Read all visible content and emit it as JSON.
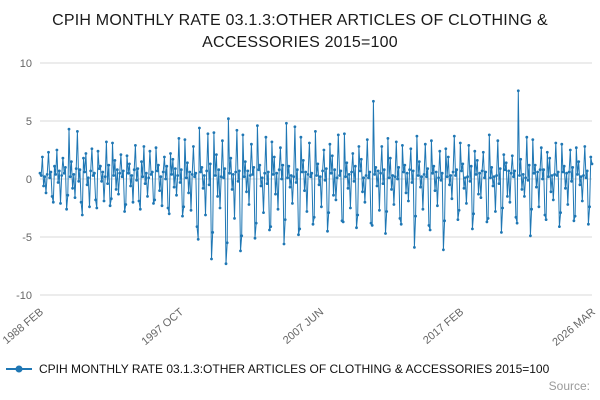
{
  "page_title": "CPIH MONTHLY RATE 03.1.3:OTHER ARTICLES OF CLOTHING & ACCESSORIES 2015=100",
  "legend": {
    "series_label": "CPIH MONTHLY RATE 03.1.3:OTHER ARTICLES OF CLOTHING & ACCESSORIES 2015=100"
  },
  "source": {
    "label": "Source:"
  },
  "colors": {
    "series": "#1f77b4",
    "grid": "#d9d9d9",
    "tick_text": "#666666",
    "title_text": "#1a1a1a",
    "source_text": "#9a9a9a"
  },
  "chart_data": {
    "type": "line",
    "title": "CPIH MONTHLY RATE 03.1.3:OTHER ARTICLES OF CLOTHING & ACCESSORIES 2015=100",
    "xlabel": "",
    "ylabel": "",
    "x_start": "1988 FEB",
    "x_end": "2026 MAR",
    "x_frequency": "monthly",
    "x_tick_labels": [
      "1988 FEB",
      "1997 OCT",
      "2007 JUN",
      "2017 FEB",
      "2026 MAR"
    ],
    "x_tick_indices": [
      0,
      116,
      232,
      348,
      457
    ],
    "y_ticks": [
      10,
      5,
      0,
      -5,
      -10
    ],
    "ylim": [
      -10,
      10
    ],
    "grid": "horizontal",
    "legend_position": "bottom-left",
    "marker": "circle",
    "values": [
      0.5,
      0.3,
      1.9,
      -0.6,
      0.2,
      -1.2,
      0.4,
      2.3,
      0.1,
      0.6,
      -1.5,
      -2.0,
      1.1,
      0.4,
      2.5,
      -0.3,
      0.7,
      -2.1,
      0.3,
      1.8,
      0.5,
      1.0,
      -2.6,
      -1.4,
      4.3,
      0.2,
      1.5,
      -0.8,
      0.4,
      -1.6,
      0.9,
      4.1,
      -0.2,
      0.8,
      -2.0,
      -3.1,
      1.8,
      0.6,
      2.2,
      -0.5,
      0.1,
      -2.4,
      0.7,
      2.6,
      0.3,
      0.5,
      -1.8,
      -2.5,
      2.4,
      0.9,
      1.1,
      -0.2,
      0.6,
      -1.9,
      0.2,
      3.2,
      -0.4,
      1.2,
      -2.3,
      -1.7,
      3.1,
      0.3,
      1.6,
      -0.9,
      0.8,
      -1.3,
      0.5,
      2.1,
      0.2,
      0.7,
      -2.8,
      -2.2,
      2.0,
      0.5,
      1.3,
      -0.6,
      0.3,
      -2.0,
      0.8,
      2.9,
      -0.1,
      0.9,
      -1.9,
      -2.6,
      1.5,
      0.2,
      2.8,
      -0.4,
      0.5,
      -1.5,
      0.1,
      2.4,
      0.4,
      0.6,
      -2.1,
      -1.8,
      2.7,
      0.7,
      1.2,
      -1.0,
      0.2,
      -2.3,
      0.6,
      1.9,
      0.0,
      1.1,
      -2.5,
      -3.0,
      2.2,
      0.4,
      1.7,
      -0.7,
      0.9,
      -1.4,
      0.3,
      3.5,
      -0.3,
      0.8,
      -3.2,
      -2.4,
      3.4,
      0.1,
      1.4,
      -1.2,
      0.6,
      -2.7,
      0.4,
      2.8,
      0.2,
      0.5,
      -4.1,
      -5.2,
      4.4,
      0.6,
      1.0,
      -0.8,
      0.3,
      -3.1,
      0.7,
      3.9,
      -0.5,
      1.3,
      -6.9,
      -4.6,
      4.0,
      0.3,
      2.1,
      -1.5,
      0.8,
      -2.5,
      0.2,
      3.3,
      0.1,
      0.9,
      -7.3,
      -5.5,
      5.2,
      0.5,
      1.8,
      -0.9,
      0.4,
      -3.4,
      0.6,
      4.2,
      -0.2,
      0.7,
      -6.2,
      -4.9,
      3.8,
      0.2,
      1.5,
      -1.1,
      0.7,
      -2.2,
      0.3,
      3.0,
      0.4,
      1.0,
      -5.1,
      -3.8,
      4.6,
      0.8,
      1.2,
      -0.6,
      0.1,
      -2.9,
      0.5,
      3.6,
      -0.4,
      0.6,
      -4.4,
      -4.1,
      3.2,
      0.4,
      1.9,
      -1.3,
      0.5,
      -2.6,
      0.8,
      2.7,
      0.0,
      1.2,
      -5.6,
      -3.5,
      4.8,
      0.1,
      1.1,
      -0.7,
      0.3,
      -2.1,
      0.2,
      4.5,
      -0.3,
      0.8,
      -4.8,
      -4.3,
      3.6,
      0.6,
      1.6,
      -1.0,
      0.6,
      -2.8,
      0.4,
      3.1,
      0.2,
      0.5,
      -3.9,
      -3.3,
      4.1,
      0.3,
      1.3,
      -0.5,
      0.2,
      -2.4,
      0.7,
      2.5,
      -0.1,
      0.9,
      -4.5,
      -2.9,
      3.0,
      0.5,
      2.0,
      -1.4,
      0.8,
      -1.8,
      0.1,
      3.8,
      0.3,
      0.7,
      -3.6,
      -3.7,
      3.9,
      0.2,
      1.4,
      -0.8,
      0.4,
      -2.5,
      0.6,
      2.2,
      -0.2,
      1.1,
      -4.2,
      -3.1,
      2.8,
      0.7,
      1.7,
      -1.1,
      0.1,
      -2.0,
      0.3,
      3.4,
      0.1,
      0.6,
      -3.8,
      -4.0,
      6.7,
      0.4,
      1.0,
      -0.6,
      0.7,
      -2.7,
      0.5,
      2.8,
      -0.4,
      0.8,
      -4.7,
      -2.8,
      3.5,
      0.1,
      1.8,
      -0.9,
      0.3,
      -2.2,
      0.2,
      3.2,
      0.0,
      1.0,
      -3.4,
      -3.9,
      2.9,
      0.6,
      1.2,
      -1.2,
      0.5,
      -1.9,
      0.8,
      2.6,
      -0.3,
      0.7,
      -5.9,
      -3.2,
      3.7,
      0.3,
      1.5,
      -0.7,
      0.2,
      -2.6,
      0.4,
      3.0,
      0.2,
      0.9,
      -4.0,
      -4.4,
      3.3,
      0.5,
      1.1,
      -1.0,
      0.6,
      -2.3,
      0.1,
      2.4,
      -0.1,
      0.5,
      -6.1,
      -3.6,
      2.6,
      0.2,
      1.9,
      -0.5,
      0.3,
      -1.7,
      0.6,
      3.7,
      0.3,
      0.8,
      -3.5,
      -2.7,
      3.1,
      0.7,
      1.3,
      -0.8,
      0.1,
      -2.1,
      0.2,
      2.9,
      -0.2,
      1.1,
      -4.3,
      -3.0,
      2.4,
      0.4,
      1.6,
      -1.3,
      0.5,
      -1.6,
      0.7,
      2.3,
      0.1,
      0.6,
      -3.7,
      -3.4,
      3.8,
      0.1,
      1.0,
      -0.6,
      0.2,
      -2.8,
      0.3,
      3.3,
      -0.4,
      0.9,
      -4.6,
      -2.5,
      2.1,
      0.8,
      1.4,
      -1.5,
      0.7,
      -2.0,
      0.5,
      2.0,
      0.2,
      0.7,
      -3.3,
      -3.8,
      7.6,
      0.3,
      1.7,
      -0.9,
      0.4,
      -1.5,
      0.1,
      3.6,
      -0.1,
      1.2,
      -4.9,
      -2.6,
      3.4,
      0.5,
      1.2,
      -0.7,
      0.6,
      -2.4,
      0.8,
      2.7,
      0.0,
      0.8,
      -3.1,
      -3.5,
      2.3,
      0.2,
      1.8,
      -1.1,
      0.3,
      -1.8,
      0.4,
      3.1,
      0.3,
      0.6,
      -4.1,
      -2.9,
      3.0,
      0.6,
      1.1,
      -0.8,
      0.5,
      -2.2,
      0.6,
      2.5,
      -0.2,
      1.0,
      -3.6,
      -3.2,
      2.7,
      0.4,
      1.5,
      -0.5,
      0.2,
      -1.9,
      0.3,
      2.8,
      0.1,
      0.7,
      -3.9,
      -2.4,
      1.9,
      1.3
    ]
  }
}
